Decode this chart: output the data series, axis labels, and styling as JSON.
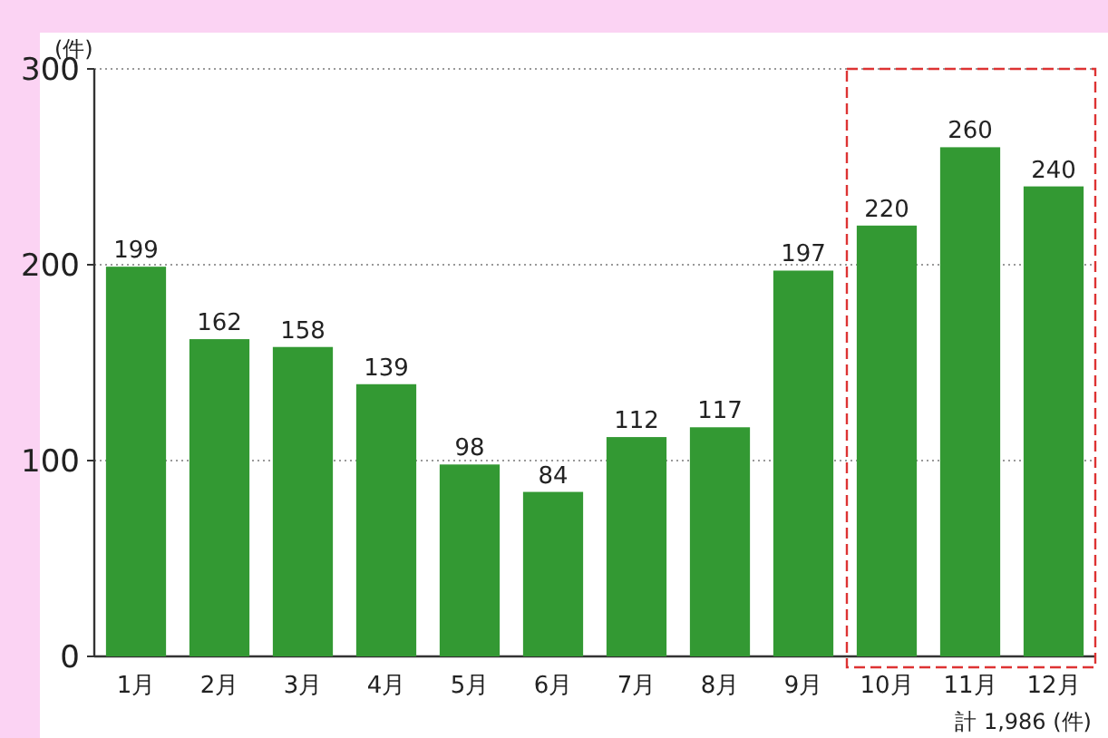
{
  "chart_data": {
    "type": "bar",
    "ylabel": "(件)",
    "categories": [
      "1月",
      "2月",
      "3月",
      "4月",
      "5月",
      "6月",
      "7月",
      "8月",
      "9月",
      "10月",
      "11月",
      "12月"
    ],
    "values": [
      199,
      162,
      158,
      139,
      98,
      84,
      112,
      117,
      197,
      220,
      260,
      240
    ],
    "color": "#339933",
    "ylim": [
      0,
      300
    ],
    "yticks": [
      0,
      100,
      200,
      300
    ],
    "grid": "y",
    "data_labels": true,
    "annotations": [
      "計 1,986 (件)"
    ]
  }
}
